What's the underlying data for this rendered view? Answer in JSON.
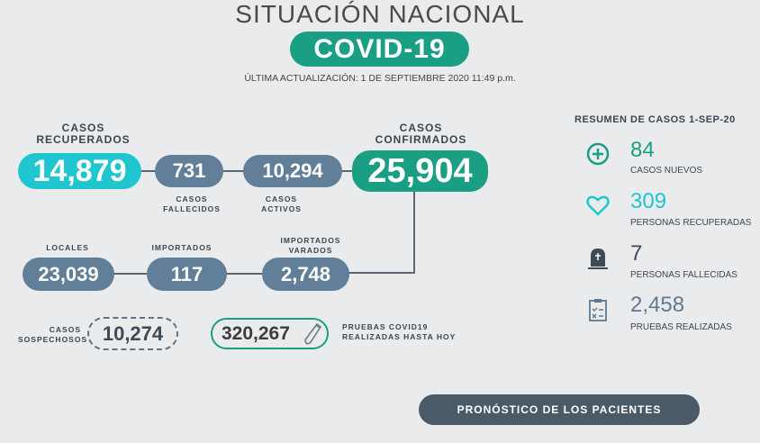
{
  "header": {
    "title": "SITUACIÓN NACIONAL",
    "badge": "COVID-19",
    "updated": "ÚLTIMA ACTUALIZACIÓN: 1 DE SEPTIEMBRE 2020 11:49 p.m."
  },
  "stats": {
    "recuperados": {
      "label": "CASOS RECUPERADOS",
      "value": "14,879"
    },
    "fallecidos": {
      "label": "CASOS FALLECIDOS",
      "value": "731"
    },
    "activos": {
      "label": "CASOS ACTIVOS",
      "value": "10,294"
    },
    "confirmados": {
      "label": "CASOS CONFIRMADOS",
      "value": "25,904"
    },
    "locales": {
      "label": "LOCALES",
      "value": "23,039"
    },
    "importados": {
      "label": "IMPORTADOS",
      "value": "117"
    },
    "varados": {
      "label": "IMPORTADOS VARADOS",
      "value": "2,748"
    },
    "sospechosos": {
      "label": "CASOS SOSPECHOSOS",
      "value": "10,274"
    },
    "pruebas": {
      "label": "PRUEBAS COVID19 REALIZADAS HASTA HOY",
      "value": "320,267"
    }
  },
  "summary": {
    "title": "RESUMEN DE CASOS 1-SEP-20",
    "items": [
      {
        "icon": "plus-circle-icon",
        "value": "84",
        "label": "CASOS NUEVOS",
        "color": "#1a9e84"
      },
      {
        "icon": "heart-icon",
        "value": "309",
        "label": "PERSONAS RECUPERADAS",
        "color": "#1fc6cf"
      },
      {
        "icon": "tombstone-icon",
        "value": "7",
        "label": "PERSONAS FALLECIDAS",
        "color": "#3d4b57"
      },
      {
        "icon": "clipboard-icon",
        "value": "2,458",
        "label": "PRUEBAS REALIZADAS",
        "color": "#5d7a92"
      }
    ]
  },
  "button": {
    "label": "PRONÓSTICO DE LOS PACIENTES"
  }
}
